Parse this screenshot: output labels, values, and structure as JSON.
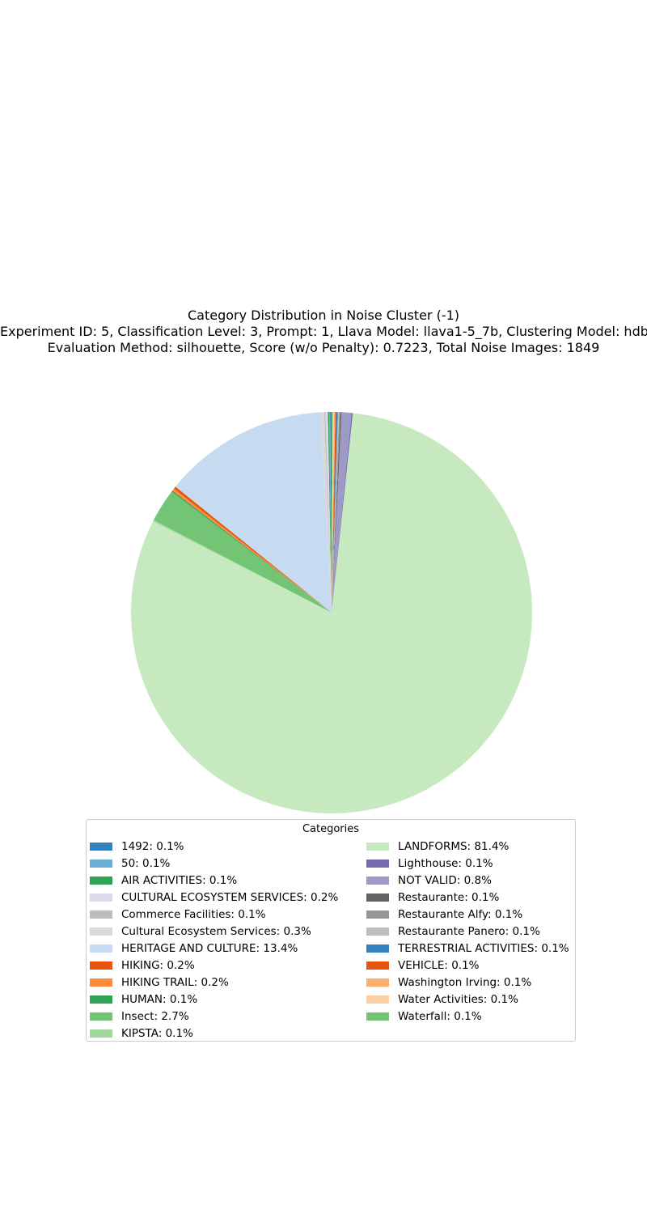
{
  "chart_data": {
    "type": "pie",
    "title": "Category Distribution in Noise Cluster (-1)",
    "subtitle_lines": [
      "Experiment ID: 5, Classification Level: 3, Prompt: 1, Llava Model: llava1-5_7b, Clustering Model: hdbscan",
      "Evaluation Method: silhouette, Score (w/o Penalty): 0.7223, Total Noise Images: 1849"
    ],
    "legend_title": "Categories",
    "legend_placement": "lower center",
    "start_angle_deg": 90,
    "direction": "counterclockwise",
    "slices": [
      {
        "label": "1492",
        "value": 0.1,
        "color": "#3182bd"
      },
      {
        "label": "50",
        "value": 0.1,
        "color": "#6baed6"
      },
      {
        "label": "AIR ACTIVITIES",
        "value": 0.1,
        "color": "#31a354"
      },
      {
        "label": "CULTURAL ECOSYSTEM SERVICES",
        "value": 0.2,
        "color": "#dadaeb"
      },
      {
        "label": "Commerce Facilities",
        "value": 0.1,
        "color": "#bdbdbd"
      },
      {
        "label": "Cultural Ecosystem Services",
        "value": 0.3,
        "color": "#d9d9d9"
      },
      {
        "label": "HERITAGE AND CULTURE",
        "value": 13.4,
        "color": "#c6dbef"
      },
      {
        "label": "HIKING",
        "value": 0.2,
        "color": "#e6550d"
      },
      {
        "label": "HIKING TRAIL",
        "value": 0.2,
        "color": "#fd8d3c"
      },
      {
        "label": "HUMAN",
        "value": 0.1,
        "color": "#31a354"
      },
      {
        "label": "Insect",
        "value": 2.7,
        "color": "#74c476"
      },
      {
        "label": "KIPSTA",
        "value": 0.1,
        "color": "#a1d99b"
      },
      {
        "label": "LANDFORMS",
        "value": 81.4,
        "color": "#c7e9c0"
      },
      {
        "label": "Lighthouse",
        "value": 0.1,
        "color": "#756bb1"
      },
      {
        "label": "NOT VALID",
        "value": 0.8,
        "color": "#9e9ac8"
      },
      {
        "label": "Restaurante",
        "value": 0.1,
        "color": "#636363"
      },
      {
        "label": "Restaurante Alfy",
        "value": 0.1,
        "color": "#969696"
      },
      {
        "label": "Restaurante Panero",
        "value": 0.1,
        "color": "#bdbdbd"
      },
      {
        "label": "TERRESTRIAL ACTIVITIES",
        "value": 0.1,
        "color": "#3182bd"
      },
      {
        "label": "VEHICLE",
        "value": 0.1,
        "color": "#e6550d"
      },
      {
        "label": "Washington Irving",
        "value": 0.1,
        "color": "#fdae6b"
      },
      {
        "label": "Water Activities",
        "value": 0.1,
        "color": "#fdd0a2"
      },
      {
        "label": "Waterfall",
        "value": 0.1,
        "color": "#74c476"
      }
    ]
  }
}
